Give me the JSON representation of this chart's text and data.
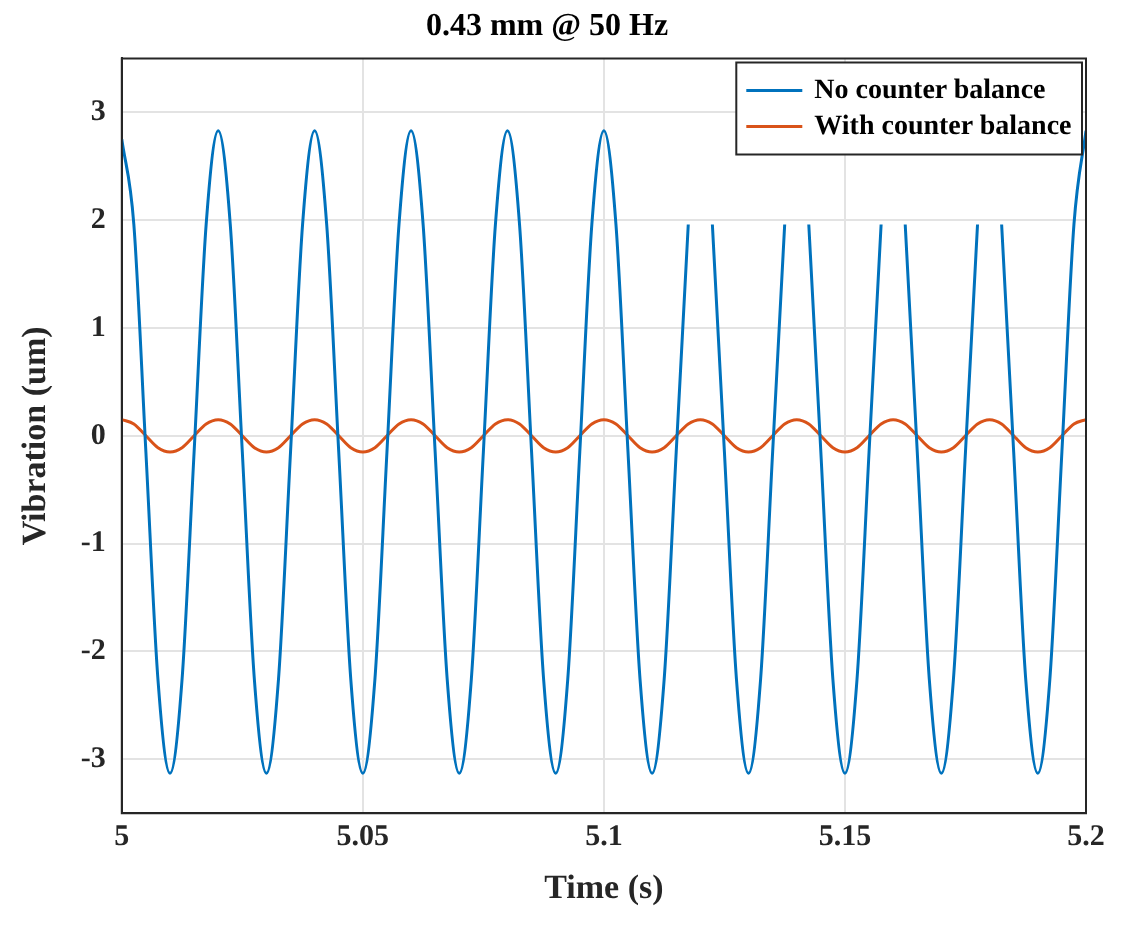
{
  "chart_data": {
    "type": "line",
    "title": "0.43 mm @ 50 Hz",
    "xlabel": "Time (s)",
    "ylabel": "Vibration (um)",
    "x": [
      5,
      5.0025,
      5.005,
      5.0075,
      5.01,
      5.0125,
      5.015,
      5.0175,
      5.02,
      5.0225,
      5.025,
      5.0275,
      5.03,
      5.0325,
      5.035,
      5.0375,
      5.04,
      5.0425,
      5.045,
      5.0475,
      5.05,
      5.0525,
      5.055,
      5.0575,
      5.06,
      5.0625,
      5.065,
      5.0675,
      5.07,
      5.0725,
      5.075,
      5.0775,
      5.08,
      5.0825,
      5.085,
      5.0875,
      5.09,
      5.0925,
      5.095,
      5.0975,
      5.1,
      5.1025,
      5.105,
      5.1075,
      5.11,
      5.1125,
      5.115,
      5.1175,
      5.12,
      5.1225,
      5.125,
      5.1275,
      5.13,
      5.1325,
      5.135,
      5.1375,
      5.14,
      5.1425,
      5.145,
      5.1475,
      5.15,
      5.1525,
      5.155,
      5.1575,
      5.16,
      5.1625,
      5.165,
      5.1675,
      5.17,
      5.1725,
      5.175,
      5.1775,
      5.18,
      5.1825,
      5.185,
      5.1875,
      5.19,
      5.1925,
      5.195,
      5.1975,
      5.2
    ],
    "series": [
      {
        "name": "No counter balance",
        "color": "#0072bd",
        "values": [
          2.75,
          1.96,
          -0.15,
          -2.26,
          -3.13,
          -2.26,
          -0.15,
          1.96,
          2.83,
          1.96,
          -0.15,
          -2.26,
          -3.13,
          -2.26,
          -0.15,
          1.96,
          2.83,
          1.96,
          -0.15,
          -2.26,
          -3.13,
          -2.26,
          -0.15,
          1.96,
          2.83,
          1.96,
          -0.15,
          -2.26,
          -3.13,
          -2.26,
          -0.15,
          1.96,
          2.83,
          1.96,
          -0.15,
          -2.26,
          -3.13,
          -2.26,
          -0.15,
          1.96,
          2.83,
          1.96,
          -0.15,
          -2.26,
          -3.13,
          -2.26,
          -0.15,
          1.96,
          null,
          1.96,
          -0.15,
          -2.26,
          -3.13,
          -2.26,
          -0.15,
          1.96,
          null,
          1.96,
          -0.15,
          -2.26,
          -3.13,
          -2.26,
          -0.15,
          1.96,
          null,
          1.96,
          -0.15,
          -2.26,
          -3.13,
          -2.26,
          -0.15,
          1.96,
          null,
          1.96,
          -0.15,
          -2.26,
          -3.13,
          -2.26,
          -0.15,
          1.96,
          2.83
        ]
      },
      {
        "name": "With counter balance",
        "color": "#d95319",
        "values": [
          0.15,
          0.11,
          0,
          -0.11,
          -0.15,
          -0.11,
          0,
          0.11,
          0.15,
          0.11,
          0,
          -0.11,
          -0.15,
          -0.11,
          0,
          0.11,
          0.15,
          0.11,
          0,
          -0.11,
          -0.15,
          -0.11,
          0,
          0.11,
          0.15,
          0.11,
          0,
          -0.11,
          -0.15,
          -0.11,
          0,
          0.11,
          0.15,
          0.11,
          0,
          -0.11,
          -0.15,
          -0.11,
          0,
          0.11,
          0.15,
          0.11,
          0,
          -0.11,
          -0.15,
          -0.11,
          0,
          0.11,
          0.15,
          0.11,
          0,
          -0.11,
          -0.15,
          -0.11,
          0,
          0.11,
          0.15,
          0.11,
          0,
          -0.11,
          -0.15,
          -0.11,
          0,
          0.11,
          0.15,
          0.11,
          0,
          -0.11,
          -0.15,
          -0.11,
          0,
          0.11,
          0.15,
          0.11,
          0,
          -0.11,
          -0.15,
          -0.11,
          0,
          0.11,
          0.15
        ]
      }
    ],
    "xlim": [
      5,
      5.2
    ],
    "xticks": [
      5,
      5.05,
      5.1,
      5.15,
      5.2
    ],
    "ylim": [
      -3.5,
      3.5
    ],
    "yticks": [
      -3,
      -2,
      -1,
      0,
      1,
      2,
      3
    ],
    "grid": true,
    "legend": "top right",
    "marker": "none",
    "line_style": "solid"
  }
}
